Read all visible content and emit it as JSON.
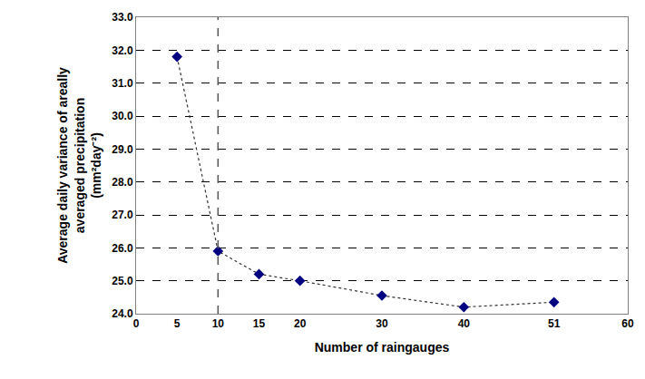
{
  "chart_data": {
    "type": "line",
    "x_label": "Number of raingauges",
    "y_label": "Average daily variance of areally\naveraged precipitation\n(mm²day⁻²)",
    "x": [
      5,
      10,
      15,
      20,
      30,
      40,
      51
    ],
    "values": [
      31.8,
      25.9,
      25.2,
      25.0,
      24.55,
      24.2,
      24.35
    ],
    "color": "#000080",
    "marker": "diamond",
    "line_style": "dot",
    "xlim": [
      0,
      60
    ],
    "xticks": [
      0,
      5,
      10,
      15,
      20,
      30,
      40,
      51,
      60
    ],
    "ylim": [
      24,
      33
    ],
    "yticks": [
      {
        "value": 24,
        "label": "24.0"
      },
      {
        "value": 25,
        "label": "25.0"
      },
      {
        "value": 26,
        "label": "26.0"
      },
      {
        "value": 27,
        "label": "27.0"
      },
      {
        "value": 28,
        "label": "28.0"
      },
      {
        "value": 29,
        "label": "29.0"
      },
      {
        "value": 30,
        "label": "30.0"
      },
      {
        "value": 31,
        "label": "31.0"
      },
      {
        "value": 32,
        "label": "32.0"
      },
      {
        "value": 33,
        "label": "33.0"
      }
    ],
    "reference_line_x": 10,
    "grid": true
  }
}
